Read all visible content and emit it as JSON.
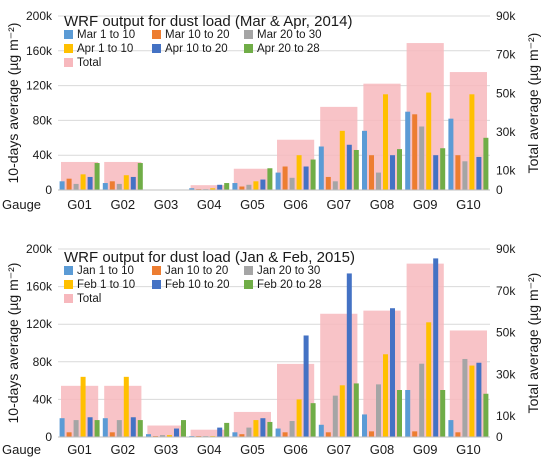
{
  "chart_data": [
    {
      "type": "bar",
      "title": "WRF output for dust load (Mar & Apr, 2014)",
      "ylabel": "10-days average (µg m⁻²)",
      "y2label": "Total average (µg m⁻²)",
      "xlabel": "Gauge",
      "categories": [
        "G01",
        "G02",
        "G03",
        "G04",
        "G05",
        "G06",
        "G07",
        "G08",
        "G09",
        "G10"
      ],
      "ylim": [
        0,
        200000
      ],
      "yticks": [
        0,
        40000,
        80000,
        120000,
        160000,
        200000
      ],
      "ytick_labels": [
        "0",
        "40k",
        "80k",
        "120k",
        "160k",
        "200k"
      ],
      "y2lim": [
        0,
        90000
      ],
      "y2ticks": [
        0,
        10000,
        30000,
        50000,
        70000,
        90000
      ],
      "y2tick_labels": [
        "0",
        "10k",
        "30k",
        "50k",
        "70k",
        "90k"
      ],
      "legend_position": "top-left",
      "legend_rows": [
        3,
        3,
        1
      ],
      "series": [
        {
          "name": "Mar 1 to 10",
          "color": "#5b9bd5",
          "values": [
            10000,
            8000,
            0,
            2000,
            8000,
            20000,
            50000,
            68000,
            90000,
            82000
          ]
        },
        {
          "name": "Mar 10 to 20",
          "color": "#ed7d31",
          "values": [
            13000,
            10000,
            0,
            1000,
            4000,
            27000,
            15000,
            40000,
            87000,
            40000
          ]
        },
        {
          "name": "Mar 20 to 30",
          "color": "#a5a5a5",
          "values": [
            7000,
            7000,
            0,
            1000,
            6000,
            14000,
            10000,
            20000,
            73000,
            33000
          ]
        },
        {
          "name": "Apr 1 to 10",
          "color": "#ffc000",
          "values": [
            18000,
            17000,
            0,
            2000,
            10000,
            40000,
            68000,
            110000,
            112000,
            110000
          ]
        },
        {
          "name": "Apr 10 to 20",
          "color": "#4472c4",
          "values": [
            15000,
            15000,
            0,
            6000,
            12000,
            27000,
            52000,
            40000,
            40000,
            38000
          ]
        },
        {
          "name": "Apr 20 to 28",
          "color": "#70ad47",
          "values": [
            31000,
            31000,
            0,
            8000,
            25000,
            35000,
            46000,
            47000,
            48000,
            60000
          ]
        }
      ],
      "total": {
        "name": "Total",
        "color": "#f7b8bd",
        "values": [
          14500,
          14500,
          0,
          2500,
          11000,
          26000,
          43000,
          55000,
          76000,
          61000
        ]
      }
    },
    {
      "type": "bar",
      "title": "WRF output for dust load (Jan & Feb, 2015)",
      "ylabel": "10-days average (µg m⁻²)",
      "y2label": "Total average (µg m⁻²)",
      "xlabel": "Gauge",
      "categories": [
        "G01",
        "G02",
        "G03",
        "G04",
        "G05",
        "G06",
        "G07",
        "G08",
        "G09",
        "G10"
      ],
      "ylim": [
        0,
        200000
      ],
      "yticks": [
        0,
        40000,
        80000,
        120000,
        160000,
        200000
      ],
      "ytick_labels": [
        "0",
        "40k",
        "80k",
        "120k",
        "160k",
        "200k"
      ],
      "y2lim": [
        0,
        90000
      ],
      "y2ticks": [
        0,
        10000,
        30000,
        50000,
        70000,
        90000
      ],
      "y2tick_labels": [
        "0",
        "10k",
        "30k",
        "50k",
        "70k",
        "90k"
      ],
      "legend_position": "top-left",
      "legend_rows": [
        3,
        3,
        1
      ],
      "series": [
        {
          "name": "Jan 1 to 10",
          "color": "#5b9bd5",
          "values": [
            20000,
            20000,
            3000,
            1000,
            5000,
            9000,
            13000,
            24000,
            50000,
            18000
          ]
        },
        {
          "name": "Jan 10 to 20",
          "color": "#ed7d31",
          "values": [
            5000,
            5000,
            1000,
            1000,
            3000,
            5000,
            5000,
            6000,
            6000,
            5000
          ]
        },
        {
          "name": "Jan 20 to 30",
          "color": "#a5a5a5",
          "values": [
            18000,
            18000,
            2000,
            1000,
            10000,
            17000,
            44000,
            56000,
            78000,
            83000
          ]
        },
        {
          "name": "Feb 1 to 10",
          "color": "#ffc000",
          "values": [
            64000,
            64000,
            2000,
            1000,
            18000,
            40000,
            55000,
            88000,
            122000,
            76000
          ]
        },
        {
          "name": "Feb 10 to 20",
          "color": "#4472c4",
          "values": [
            21000,
            21000,
            9000,
            10000,
            20000,
            108000,
            174000,
            137000,
            190000,
            79000
          ]
        },
        {
          "name": "Feb 20 to 28",
          "color": "#70ad47",
          "values": [
            18000,
            18000,
            18000,
            15000,
            16000,
            36000,
            57000,
            50000,
            50000,
            46000
          ]
        }
      ],
      "total": {
        "name": "Total",
        "color": "#f7b8bd",
        "values": [
          24500,
          24500,
          5500,
          3500,
          12000,
          35000,
          59000,
          60500,
          83000,
          51000
        ]
      }
    }
  ]
}
